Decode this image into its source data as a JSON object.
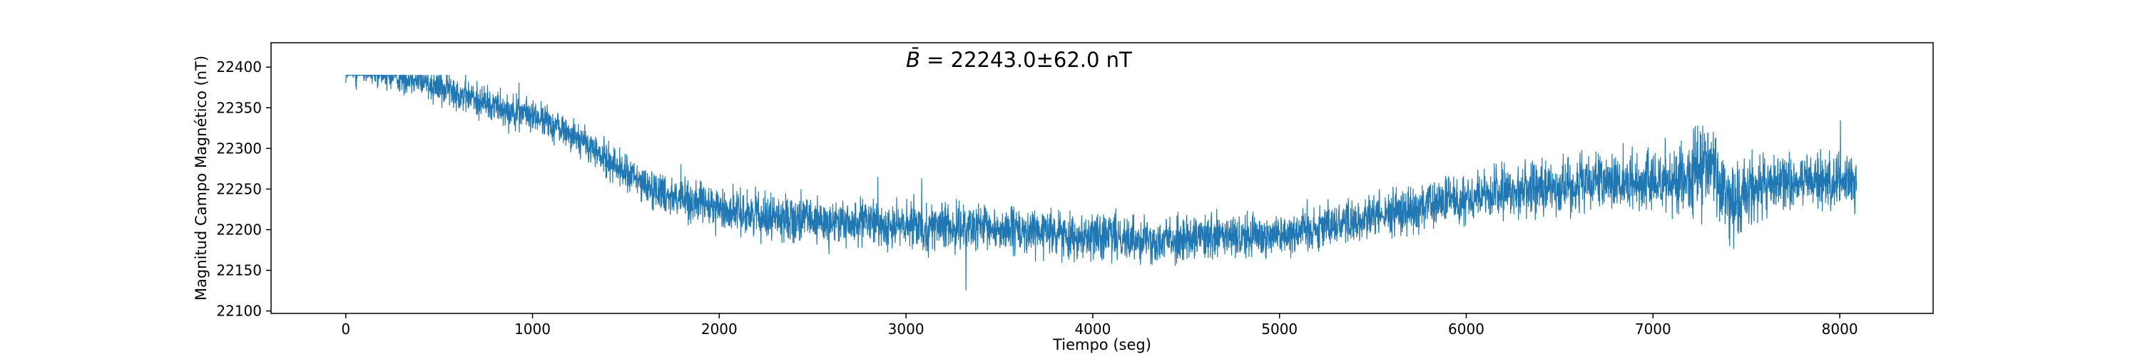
{
  "chart_data": {
    "type": "line",
    "xlabel": "Tiempo (seg)",
    "ylabel": "Magnitud Campo Magnético (nT)",
    "annotation": {
      "symbol": "B̄",
      "text": " = 22243.0±62.0 nT"
    },
    "xlim": [
      -400,
      8500
    ],
    "ylim": [
      22097,
      22430
    ],
    "xticks": [
      0,
      1000,
      2000,
      3000,
      4000,
      5000,
      6000,
      7000,
      8000
    ],
    "yticks": [
      22100,
      22150,
      22200,
      22250,
      22300,
      22350,
      22400
    ],
    "series": [
      {
        "color": "#1f77b4",
        "x_range": [
          0,
          8090
        ],
        "trend_x": [
          0,
          400,
          700,
          1000,
          1200,
          1400,
          1600,
          1800,
          2000,
          2500,
          3000,
          3500,
          4000,
          4500,
          5000,
          5500,
          6000,
          6500,
          7000,
          7200,
          7300,
          7400,
          7600,
          8090
        ],
        "trend_y": [
          22400,
          22385,
          22360,
          22340,
          22320,
          22285,
          22255,
          22238,
          22225,
          22210,
          22205,
          22200,
          22192,
          22188,
          22195,
          22215,
          22240,
          22255,
          22260,
          22265,
          22290,
          22230,
          22255,
          22262
        ],
        "noise_amplitude": [
          22,
          22,
          22,
          20,
          20,
          22,
          24,
          26,
          26,
          28,
          28,
          28,
          28,
          28,
          28,
          28,
          30,
          34,
          34,
          50,
          48,
          48,
          34,
          34
        ],
        "y_min": 22110,
        "y_max": 22390
      }
    ],
    "grid": false,
    "legend": "none"
  }
}
